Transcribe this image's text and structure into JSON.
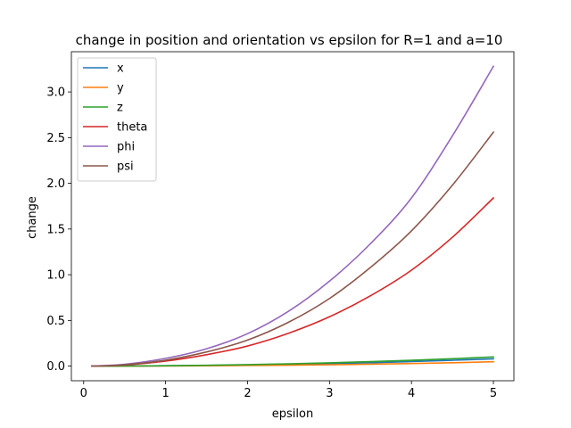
{
  "chart_data": {
    "type": "line",
    "title": "change in position and orientation vs epsilon for R=1 and a=10",
    "xlabel": "epsilon",
    "ylabel": "change",
    "xlim": [
      -0.15,
      5.25
    ],
    "ylim": [
      -0.16,
      3.44
    ],
    "xticks": [
      0,
      1,
      2,
      3,
      4,
      5
    ],
    "yticks": [
      0.0,
      0.5,
      1.0,
      1.5,
      2.0,
      2.5,
      3.0
    ],
    "xtick_labels": [
      "0",
      "1",
      "2",
      "3",
      "4",
      "5"
    ],
    "ytick_labels": [
      "0.0",
      "0.5",
      "1.0",
      "1.5",
      "2.0",
      "2.5",
      "3.0"
    ],
    "grid": false,
    "legend_position": "top-left",
    "x": [
      0.1,
      0.5,
      1.0,
      1.5,
      2.0,
      2.5,
      3.0,
      3.5,
      4.0,
      4.5,
      5.0
    ],
    "series": [
      {
        "name": "x",
        "color": "#1f77b4",
        "values": [
          0.0,
          0.001,
          0.004,
          0.008,
          0.013,
          0.019,
          0.027,
          0.037,
          0.05,
          0.064,
          0.08
        ]
      },
      {
        "name": "y",
        "color": "#ff7f0e",
        "values": [
          0.0,
          0.0005,
          0.002,
          0.004,
          0.007,
          0.01,
          0.015,
          0.021,
          0.028,
          0.037,
          0.048
        ]
      },
      {
        "name": "z",
        "color": "#2ca02c",
        "values": [
          0.0,
          0.001,
          0.004,
          0.009,
          0.016,
          0.025,
          0.036,
          0.049,
          0.064,
          0.081,
          0.1
        ]
      },
      {
        "name": "theta",
        "color": "#d62728",
        "values": [
          0.0,
          0.012,
          0.055,
          0.125,
          0.22,
          0.36,
          0.54,
          0.77,
          1.05,
          1.41,
          1.84
        ]
      },
      {
        "name": "phi",
        "color": "#9467bd",
        "values": [
          0.0,
          0.02,
          0.085,
          0.19,
          0.355,
          0.6,
          0.93,
          1.34,
          1.84,
          2.52,
          3.28
        ]
      },
      {
        "name": "psi",
        "color": "#8c564b",
        "values": [
          0.0,
          0.015,
          0.065,
          0.155,
          0.285,
          0.48,
          0.74,
          1.08,
          1.48,
          1.98,
          2.56
        ]
      }
    ]
  }
}
